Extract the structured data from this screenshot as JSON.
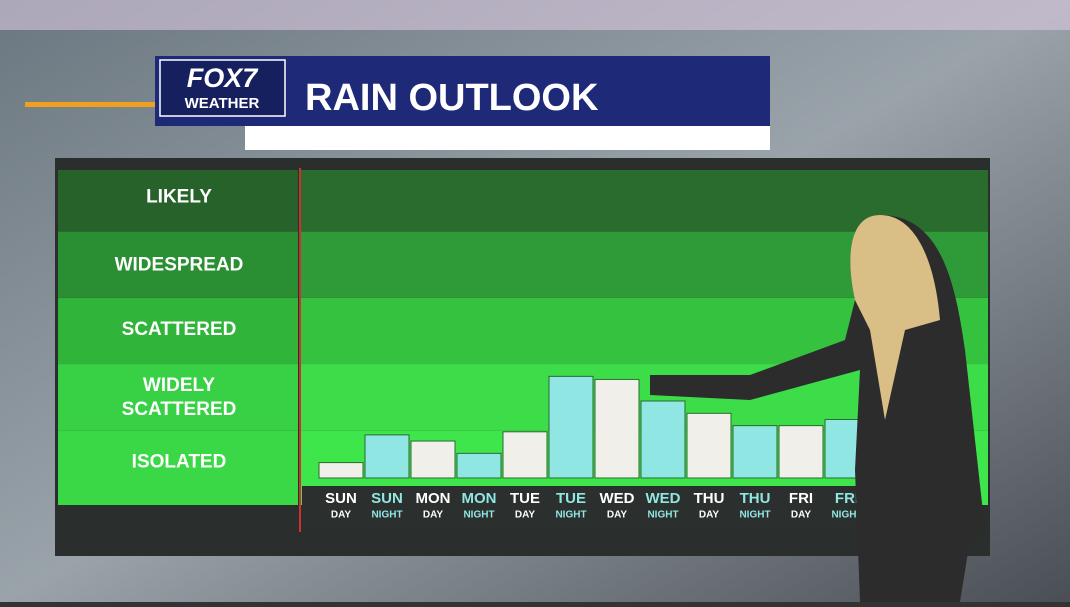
{
  "chart_data": {
    "type": "bar",
    "logo": "FOX7",
    "logo_sub": "WEATHER",
    "title": "RAIN OUTLOOK",
    "categories": [
      "SUN",
      "SUN",
      "MON",
      "MON",
      "TUE",
      "TUE",
      "WED",
      "WED",
      "THU",
      "THU",
      "FRI",
      "FRI"
    ],
    "subcategories": [
      "DAY",
      "NIGHT",
      "DAY",
      "NIGHT",
      "DAY",
      "NIGHT",
      "DAY",
      "NIGHT",
      "DAY",
      "NIGHT",
      "DAY",
      "NIGHT"
    ],
    "values": [
      5,
      14,
      12,
      8,
      15,
      33,
      32,
      25,
      21,
      17,
      17,
      19
    ],
    "bar_colors": [
      "#f1efe9",
      "#8fe6e2",
      "#f1efe9",
      "#8fe6e2",
      "#f1efe9",
      "#8fe6e2",
      "#f1efe9",
      "#8fe6e2",
      "#f1efe9",
      "#8fe6e2",
      "#f1efe9",
      "#8fe6e2"
    ],
    "ylim": [
      0,
      100
    ],
    "yticks": [
      {
        "value": 5,
        "label": "ISOLATED"
      },
      {
        "value": 26,
        "label": "WIDELY SCATTERED"
      },
      {
        "value": 48,
        "label": "SCATTERED"
      },
      {
        "value": 69,
        "label": "WIDESPREAD"
      },
      {
        "value": 91,
        "label": "LIKELY"
      }
    ]
  }
}
